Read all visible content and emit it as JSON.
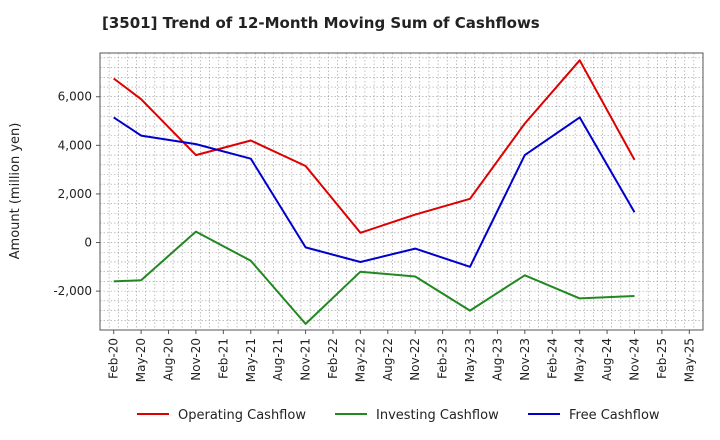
{
  "chart_data": {
    "type": "line",
    "title": "[3501]  Trend of 12-Month Moving Sum of Cashflows",
    "xlabel": "",
    "ylabel": "Amount (million yen)",
    "ylim": [
      -3600,
      7800
    ],
    "yticks": [
      -2000,
      0,
      2000,
      4000,
      6000
    ],
    "ytick_labels": [
      "-2,000",
      "0",
      "2,000",
      "4,000",
      "6,000"
    ],
    "categories": [
      "Feb-20",
      "May-20",
      "Aug-20",
      "Nov-20",
      "Feb-21",
      "May-21",
      "Aug-21",
      "Nov-21",
      "Feb-22",
      "May-22",
      "Aug-22",
      "Nov-22",
      "Feb-23",
      "May-23",
      "Aug-23",
      "Nov-23",
      "Feb-24",
      "May-24",
      "Aug-24",
      "Nov-24",
      "Feb-25",
      "May-25"
    ],
    "grid": true,
    "legend_position": "bottom",
    "series": [
      {
        "name": "Operating Cashflow",
        "color": "#dd0000",
        "values": [
          6750,
          5900,
          null,
          3600,
          null,
          4200,
          null,
          3150,
          null,
          400,
          null,
          1150,
          null,
          1800,
          null,
          4900,
          null,
          7500,
          null,
          3400,
          null,
          null
        ]
      },
      {
        "name": "Investing Cashflow",
        "color": "#228822",
        "values": [
          -1600,
          -1550,
          null,
          450,
          null,
          -750,
          null,
          -3350,
          null,
          -1200,
          null,
          -1400,
          null,
          -2800,
          null,
          -1350,
          null,
          -2300,
          null,
          -2200,
          null,
          null
        ]
      },
      {
        "name": "Free Cashflow",
        "color": "#0000cc",
        "values": [
          5150,
          4400,
          null,
          4050,
          null,
          3450,
          null,
          -200,
          null,
          -800,
          null,
          -250,
          null,
          -1000,
          null,
          3600,
          null,
          5150,
          null,
          1250,
          null,
          null
        ]
      }
    ]
  }
}
